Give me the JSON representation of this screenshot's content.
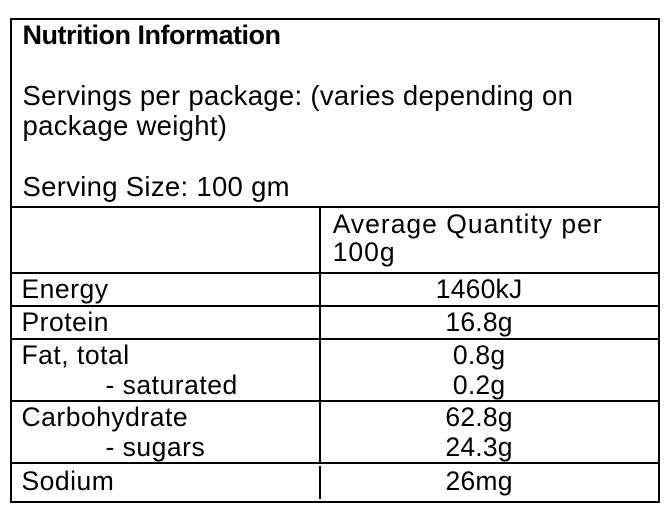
{
  "page": {
    "background_color": "#ffffff",
    "border_color": "#000000",
    "text_color": "#000000"
  },
  "label": {
    "title": "Nutrition Information",
    "servings_per_package": "Servings per package: (varies depending on package weight)",
    "serving_size": "Serving Size: 100 gm",
    "table": {
      "value_column_header": "Average Quantity per 100g",
      "rows": [
        {
          "name": "Energy",
          "value": "1460kJ"
        },
        {
          "name": "Protein",
          "value": "16.8g"
        },
        {
          "name": "Fat, total",
          "value": "0.8g",
          "sub_name": "- saturated",
          "sub_value": "0.2g"
        },
        {
          "name": "Carbohydrate",
          "value": "62.8g",
          "sub_name": "- sugars",
          "sub_value": "24.3g"
        },
        {
          "name": "Sodium",
          "value": "26mg"
        }
      ]
    }
  }
}
